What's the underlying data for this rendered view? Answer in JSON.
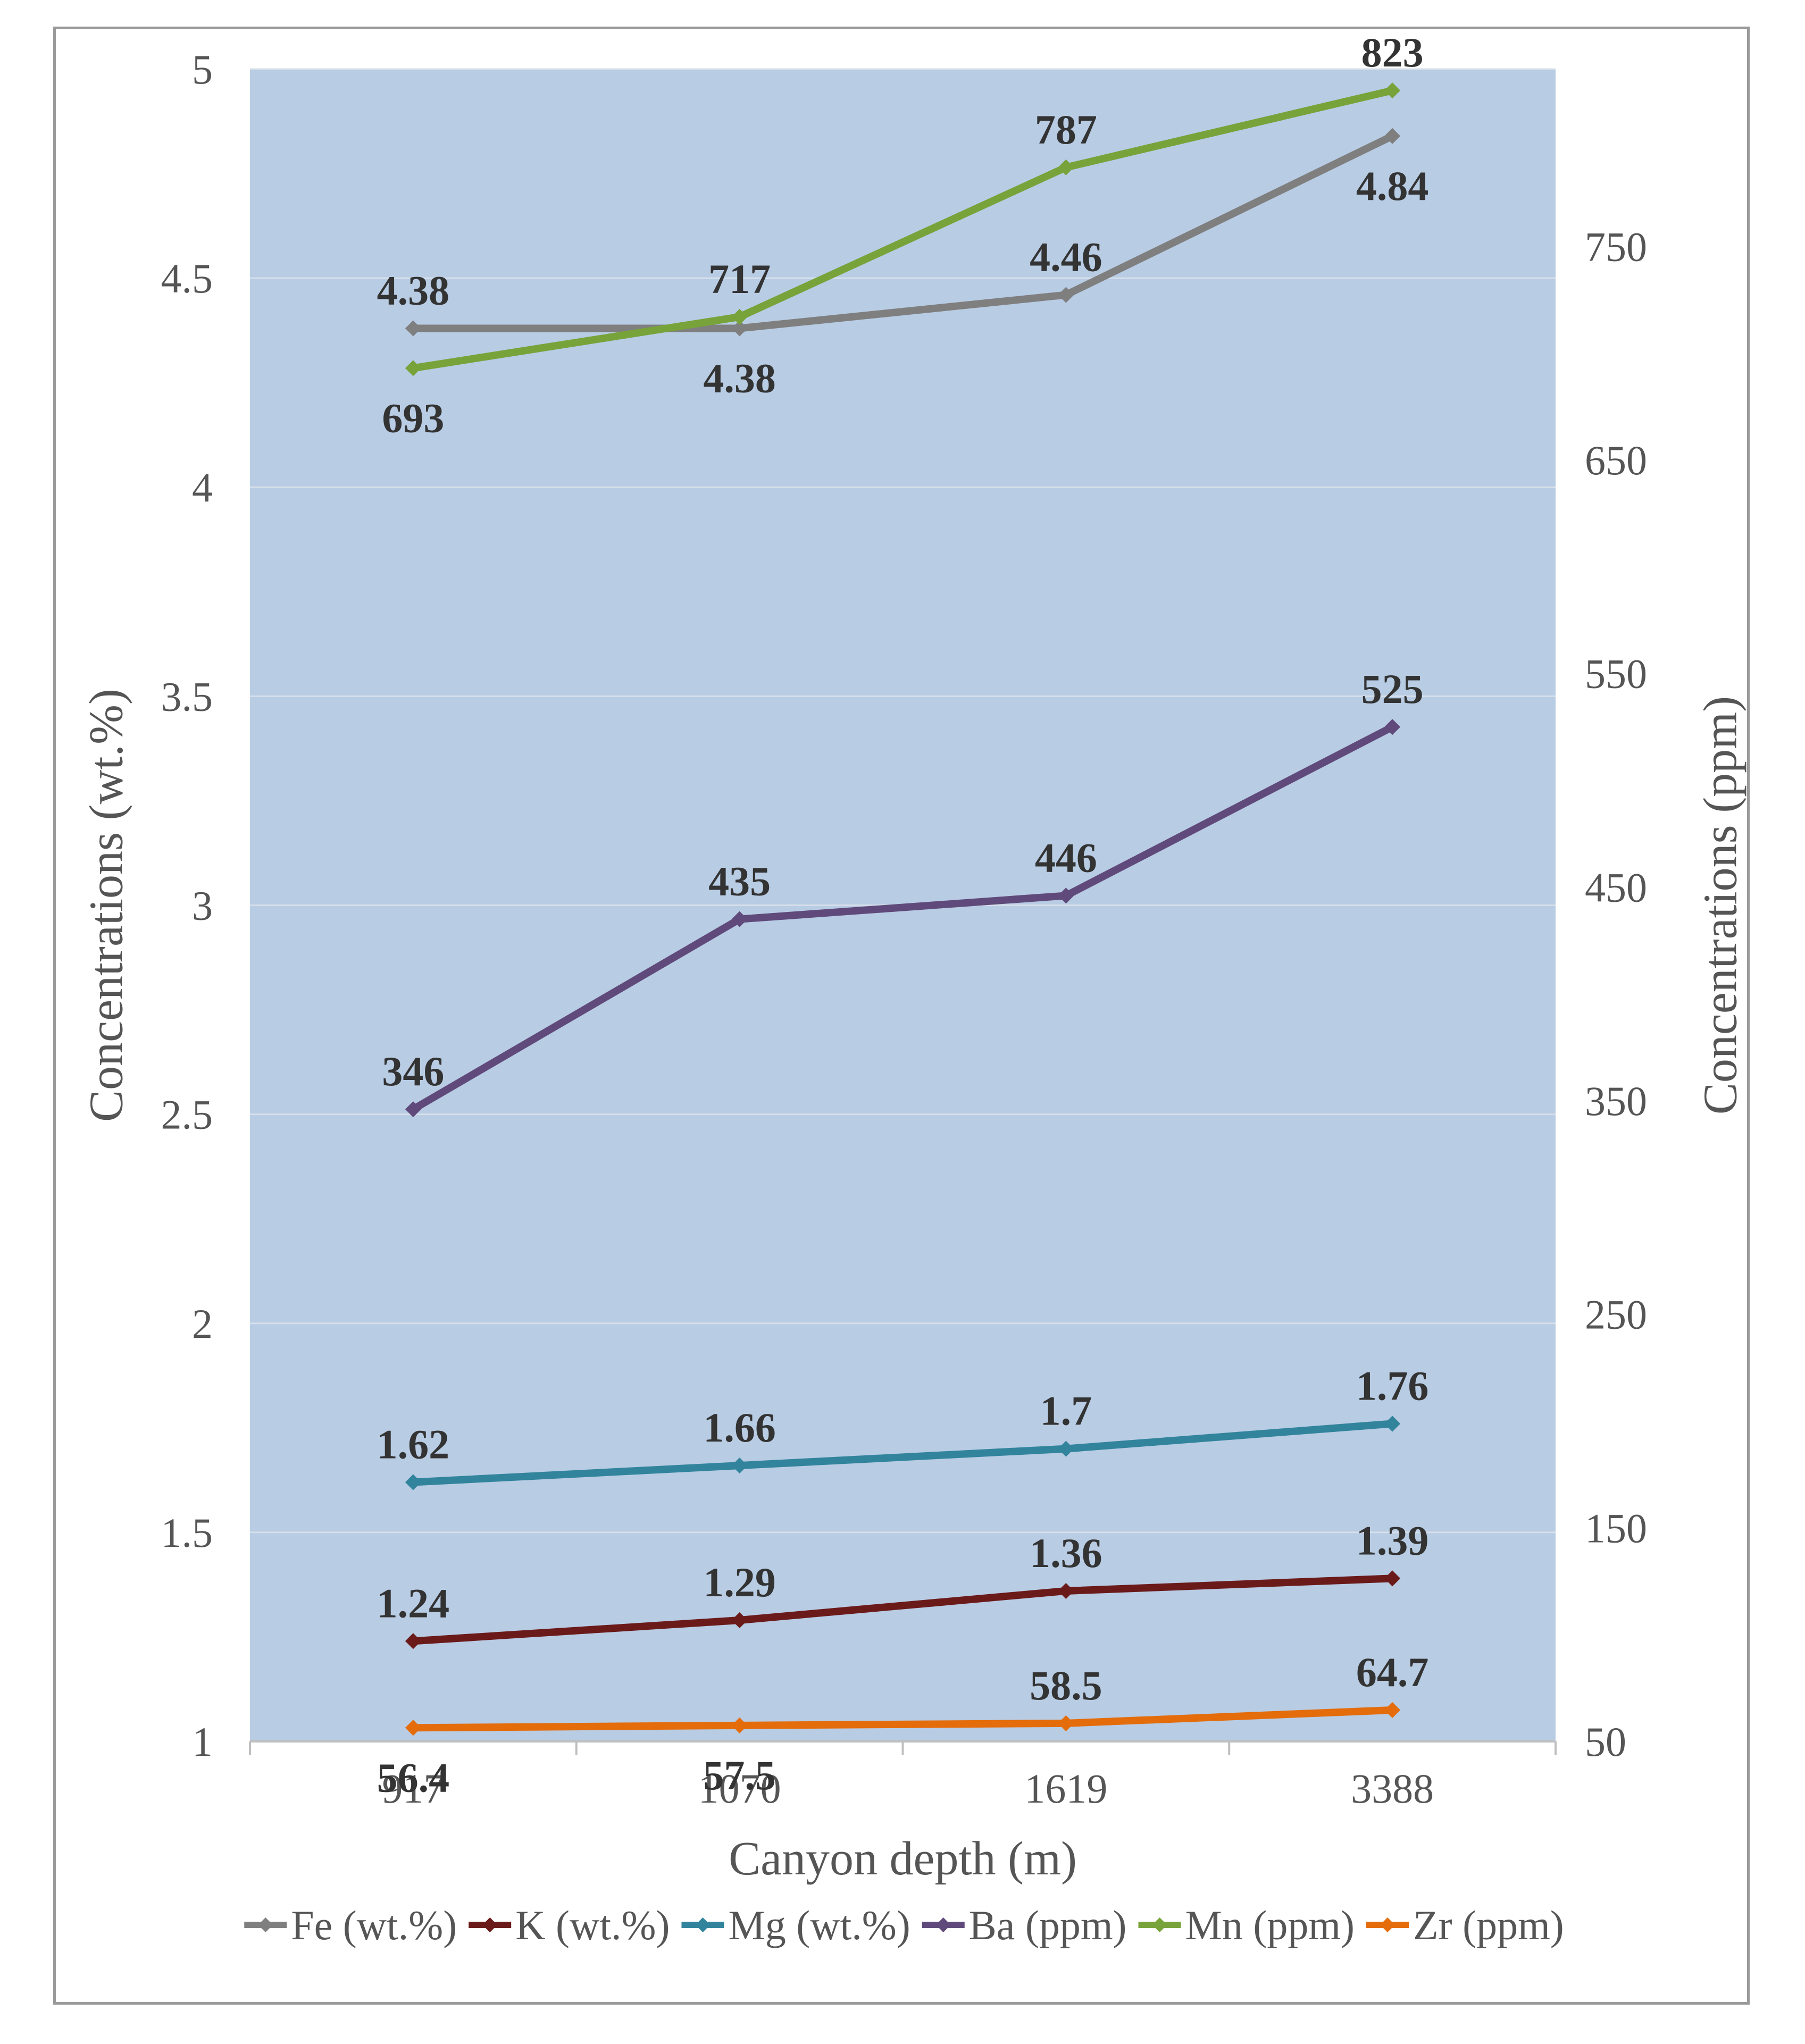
{
  "chart_data": {
    "type": "line",
    "title": "",
    "xlabel": "Canyon depth (m)",
    "ylabel": "Concentrations (wt.%)",
    "y2label": "Concentrations (ppm)",
    "categories": [
      "917",
      "1070",
      "1619",
      "3388"
    ],
    "ylim": [
      1,
      5
    ],
    "y_ticks": [
      "1",
      "1.5",
      "2",
      "2.5",
      "3",
      "3.5",
      "4",
      "4.5",
      "5"
    ],
    "y2lim": [
      50,
      833
    ],
    "y2_ticks": [
      "50",
      "150",
      "250",
      "350",
      "450",
      "550",
      "650",
      "750"
    ],
    "grid": true,
    "legend_position": "bottom",
    "plot_background": "#b8cce4",
    "series": [
      {
        "name": "Fe (wt.%)",
        "axis": "left",
        "color": "#7f7f7f",
        "values": [
          4.38,
          4.38,
          4.46,
          4.84
        ],
        "labels": [
          "4.38",
          "4.38",
          "4.46",
          "4.84"
        ]
      },
      {
        "name": "K (wt.%)",
        "axis": "left",
        "color": "#6b1a1a",
        "values": [
          1.24,
          1.29,
          1.36,
          1.39
        ],
        "labels": [
          "1.24",
          "1.29",
          "1.36",
          "1.39"
        ]
      },
      {
        "name": "Mg (wt.%)",
        "axis": "left",
        "color": "#31849b",
        "values": [
          1.62,
          1.66,
          1.7,
          1.76
        ],
        "labels": [
          "1.62",
          "1.66",
          "1.7",
          "1.76"
        ]
      },
      {
        "name": "Ba (ppm)",
        "axis": "right",
        "color": "#604a7b",
        "values": [
          346,
          435,
          446,
          525
        ],
        "labels": [
          "346",
          "435",
          "446",
          "525"
        ]
      },
      {
        "name": "Mn (ppm)",
        "axis": "right",
        "color": "#77a33a",
        "values": [
          693,
          717,
          787,
          823
        ],
        "labels": [
          "693",
          "717",
          "787",
          "823"
        ]
      },
      {
        "name": "Zr (ppm)",
        "axis": "right",
        "color": "#e46c0a",
        "values": [
          56.4,
          57.5,
          58.5,
          64.7
        ],
        "labels": [
          "56.4",
          "57.5",
          "58.5",
          "64.7"
        ]
      }
    ]
  }
}
